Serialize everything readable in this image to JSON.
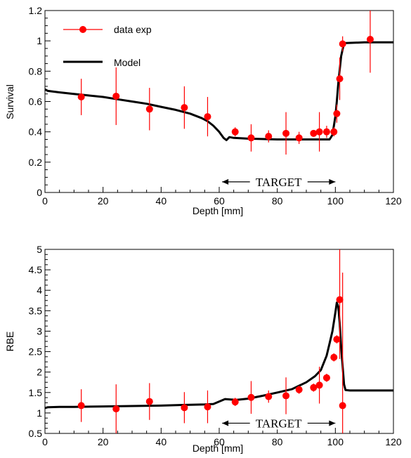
{
  "chart_data": [
    {
      "type": "scatter",
      "xlabel": "Depth [mm]",
      "ylabel": "Survival",
      "xlim": [
        0,
        120
      ],
      "ylim": [
        0,
        1.2
      ],
      "xticks": [
        0,
        20,
        40,
        60,
        80,
        100,
        120
      ],
      "yticks": [
        0,
        0.2,
        0.4,
        0.6,
        0.8,
        1,
        1.2
      ],
      "grid": false,
      "legend": "top-left",
      "annotation": {
        "text": "TARGET",
        "x_from": 61,
        "x_to": 100,
        "y": 0.07
      },
      "series": [
        {
          "name": "data exp",
          "kind": "points",
          "color": "#ff0000",
          "x": [
            12.5,
            24.5,
            36,
            48,
            56,
            65.5,
            71,
            77,
            83,
            87.5,
            92.5,
            94.5,
            97,
            99.5,
            100.5,
            101.5,
            102.5,
            112
          ],
          "y": [
            0.63,
            0.635,
            0.55,
            0.56,
            0.5,
            0.4,
            0.36,
            0.37,
            0.39,
            0.36,
            0.39,
            0.4,
            0.4,
            0.4,
            0.52,
            0.75,
            0.98,
            1.01
          ],
          "err": [
            0.12,
            0.19,
            0.14,
            0.14,
            0.13,
            0.03,
            0.09,
            0.04,
            0.14,
            0.04,
            0.02,
            0.13,
            0.04,
            0.03,
            0.06,
            0.14,
            0.05,
            0.22
          ]
        },
        {
          "name": "Model",
          "kind": "line",
          "color": "#000000",
          "x": [
            0,
            1,
            5,
            10,
            15,
            20,
            25,
            30,
            35,
            40,
            45,
            50,
            54,
            56,
            58,
            60,
            61.5,
            62.5,
            63.5,
            65,
            70,
            80,
            90,
            96,
            98,
            99,
            100,
            100.5,
            101,
            102,
            103,
            110,
            120
          ],
          "y": [
            0.68,
            0.67,
            0.66,
            0.65,
            0.64,
            0.63,
            0.615,
            0.6,
            0.585,
            0.565,
            0.545,
            0.52,
            0.49,
            0.47,
            0.44,
            0.4,
            0.36,
            0.345,
            0.365,
            0.36,
            0.355,
            0.35,
            0.35,
            0.35,
            0.35,
            0.38,
            0.5,
            0.6,
            0.72,
            0.9,
            0.985,
            0.99,
            0.99
          ]
        }
      ]
    },
    {
      "type": "scatter",
      "xlabel": "Depth [mm]",
      "ylabel": "RBE",
      "xlim": [
        0,
        120
      ],
      "ylim": [
        0.5,
        5
      ],
      "xticks": [
        0,
        20,
        40,
        60,
        80,
        100,
        120
      ],
      "yticks": [
        0.5,
        1,
        1.5,
        2,
        2.5,
        3,
        3.5,
        4,
        4.5,
        5
      ],
      "grid": false,
      "annotation": {
        "text": "TARGET",
        "x_from": 61,
        "x_to": 100,
        "y": 0.75
      },
      "series": [
        {
          "kind": "points",
          "color": "#ff0000",
          "x": [
            12.5,
            24.5,
            36,
            48,
            56,
            65.5,
            71,
            77,
            83,
            87.5,
            92.5,
            94.5,
            97,
            99.5,
            100.5,
            101.5,
            102.5
          ],
          "y": [
            1.18,
            1.1,
            1.28,
            1.13,
            1.15,
            1.27,
            1.38,
            1.4,
            1.42,
            1.57,
            1.62,
            1.68,
            1.86,
            2.36,
            2.8,
            3.77,
            1.18
          ],
          "err": [
            0.4,
            0.6,
            0.45,
            0.38,
            0.4,
            0.1,
            0.4,
            0.15,
            0.45,
            0.1,
            0.1,
            0.45,
            0.1,
            0.1,
            0.1,
            1.45,
            3.25
          ]
        },
        {
          "kind": "line",
          "color": "#000000",
          "x": [
            0,
            1,
            5,
            10,
            20,
            30,
            40,
            50,
            55,
            58,
            60,
            62,
            64,
            66,
            70,
            75,
            80,
            85,
            90,
            93,
            95,
            97,
            98,
            99,
            100,
            100.5,
            101,
            101.5,
            102,
            103,
            103.5,
            105,
            110,
            120
          ],
          "y": [
            1.12,
            1.14,
            1.15,
            1.15,
            1.16,
            1.17,
            1.18,
            1.2,
            1.21,
            1.22,
            1.28,
            1.34,
            1.33,
            1.32,
            1.35,
            1.42,
            1.5,
            1.58,
            1.75,
            1.9,
            2.05,
            2.4,
            2.7,
            3.0,
            3.45,
            3.7,
            3.6,
            3.2,
            2.6,
            1.7,
            1.56,
            1.55,
            1.55,
            1.55
          ]
        }
      ]
    }
  ]
}
